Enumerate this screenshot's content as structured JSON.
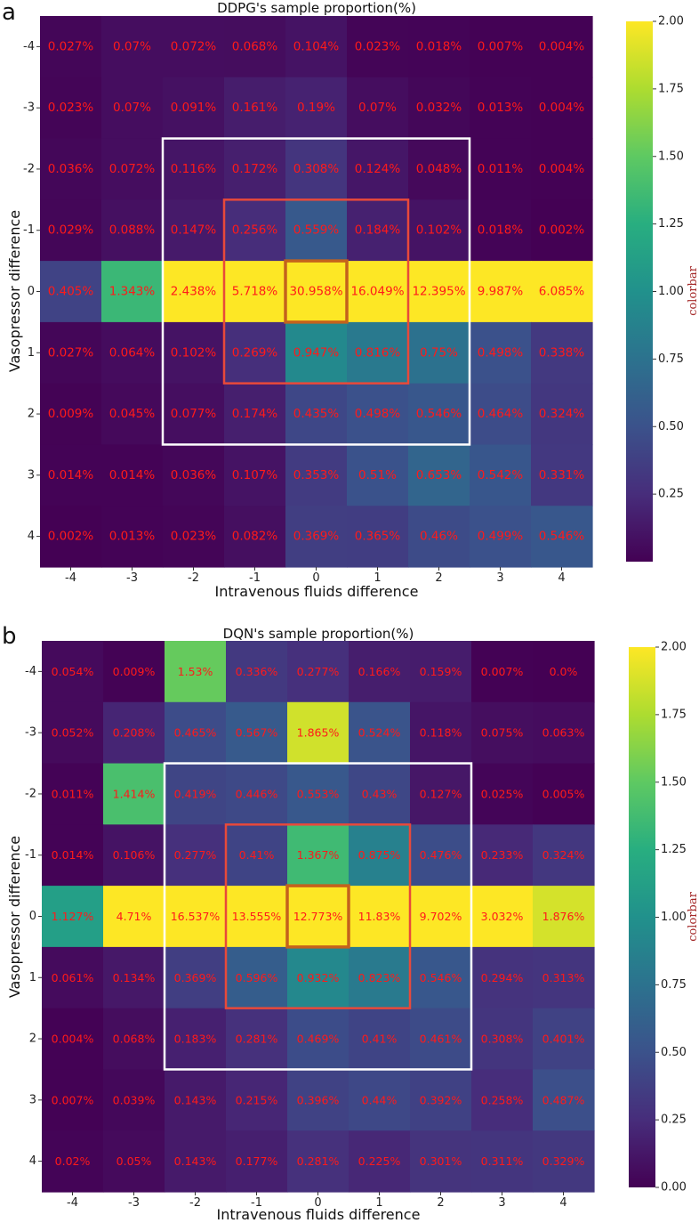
{
  "chart_data": [
    {
      "type": "heatmap",
      "panel_label": "a",
      "title": "DDPG's sample proportion(%)",
      "xlabel": "Intravenous fluids difference",
      "ylabel": "Vasopressor difference",
      "x_categories": [
        "-4",
        "-3",
        "-2",
        "-1",
        "0",
        "1",
        "2",
        "3",
        "4"
      ],
      "y_categories": [
        "-4",
        "-3",
        "-2",
        "-1",
        "0",
        "1",
        "2",
        "3",
        "4"
      ],
      "values": [
        [
          0.027,
          0.07,
          0.072,
          0.068,
          0.104,
          0.023,
          0.018,
          0.007,
          0.004
        ],
        [
          0.023,
          0.07,
          0.091,
          0.161,
          0.19,
          0.07,
          0.032,
          0.013,
          0.004
        ],
        [
          0.036,
          0.072,
          0.116,
          0.172,
          0.308,
          0.124,
          0.048,
          0.011,
          0.004
        ],
        [
          0.029,
          0.088,
          0.147,
          0.256,
          0.559,
          0.184,
          0.102,
          0.018,
          0.002
        ],
        [
          0.405,
          1.343,
          2.438,
          5.718,
          30.958,
          16.049,
          12.395,
          9.987,
          6.085
        ],
        [
          0.027,
          0.064,
          0.102,
          0.269,
          0.947,
          0.816,
          0.75,
          0.498,
          0.338
        ],
        [
          0.009,
          0.045,
          0.077,
          0.174,
          0.435,
          0.498,
          0.546,
          0.464,
          0.324
        ],
        [
          0.014,
          0.014,
          0.036,
          0.107,
          0.353,
          0.51,
          0.653,
          0.542,
          0.331
        ],
        [
          0.002,
          0.013,
          0.023,
          0.082,
          0.369,
          0.365,
          0.46,
          0.499,
          0.546
        ]
      ],
      "labels": [
        [
          "0.027%",
          "0.07%",
          "0.072%",
          "0.068%",
          "0.104%",
          "0.023%",
          "0.018%",
          "0.007%",
          "0.004%"
        ],
        [
          "0.023%",
          "0.07%",
          "0.091%",
          "0.161%",
          "0.19%",
          "0.07%",
          "0.032%",
          "0.013%",
          "0.004%"
        ],
        [
          "0.036%",
          "0.072%",
          "0.116%",
          "0.172%",
          "0.308%",
          "0.124%",
          "0.048%",
          "0.011%",
          "0.004%"
        ],
        [
          "0.029%",
          "0.088%",
          "0.147%",
          "0.256%",
          "0.559%",
          "0.184%",
          "0.102%",
          "0.018%",
          "0.002%"
        ],
        [
          "0.405%",
          "1.343%",
          "2.438%",
          "5.718%",
          "30.958%",
          "16.049%",
          "12.395%",
          "9.987%",
          "6.085%"
        ],
        [
          "0.027%",
          "0.064%",
          "0.102%",
          "0.269%",
          "0.947%",
          "0.816%",
          "0.75%",
          "0.498%",
          "0.338%"
        ],
        [
          "0.009%",
          "0.045%",
          "0.077%",
          "0.174%",
          "0.435%",
          "0.498%",
          "0.546%",
          "0.464%",
          "0.324%"
        ],
        [
          "0.014%",
          "0.014%",
          "0.036%",
          "0.107%",
          "0.353%",
          "0.51%",
          "0.653%",
          "0.542%",
          "0.331%"
        ],
        [
          "0.002%",
          "0.013%",
          "0.023%",
          "0.082%",
          "0.369%",
          "0.365%",
          "0.46%",
          "0.499%",
          "0.546%"
        ]
      ],
      "highlight_boxes": [
        {
          "x_range": [
            "-2",
            "2"
          ],
          "y_range": [
            "-2",
            "2"
          ],
          "color": "#ffffff"
        },
        {
          "x_range": [
            "-1",
            "1"
          ],
          "y_range": [
            "-1",
            "1"
          ],
          "color": "#e8493a"
        },
        {
          "x_range": [
            "0",
            "0"
          ],
          "y_range": [
            "0",
            "0"
          ],
          "color": "#c4621c"
        }
      ],
      "colorbar": {
        "label": "colorbar",
        "vmin": 0,
        "vmax": 2,
        "ticks": [
          0.25,
          0.5,
          0.75,
          1.0,
          1.25,
          1.5,
          1.75,
          2.0
        ],
        "tick_labels": [
          "0.25",
          "0.50",
          "0.75",
          "1.00",
          "1.25",
          "1.50",
          "1.75",
          "2.00"
        ]
      }
    },
    {
      "type": "heatmap",
      "panel_label": "b",
      "title": "DQN's sample proportion(%)",
      "xlabel": "Intravenous fluids difference",
      "ylabel": "Vasopressor difference",
      "x_categories": [
        "-4",
        "-3",
        "-2",
        "-1",
        "0",
        "1",
        "2",
        "3",
        "4"
      ],
      "y_categories": [
        "-4",
        "-3",
        "-2",
        "-1",
        "0",
        "1",
        "2",
        "3",
        "4"
      ],
      "values": [
        [
          0.054,
          0.009,
          1.53,
          0.336,
          0.277,
          0.166,
          0.159,
          0.007,
          0.0
        ],
        [
          0.052,
          0.208,
          0.465,
          0.567,
          1.865,
          0.524,
          0.118,
          0.075,
          0.063
        ],
        [
          0.011,
          1.414,
          0.419,
          0.446,
          0.553,
          0.43,
          0.127,
          0.025,
          0.005
        ],
        [
          0.014,
          0.106,
          0.277,
          0.41,
          1.367,
          0.875,
          0.476,
          0.233,
          0.324
        ],
        [
          1.127,
          4.71,
          16.537,
          13.555,
          12.773,
          11.83,
          9.702,
          3.032,
          1.876
        ],
        [
          0.061,
          0.134,
          0.369,
          0.596,
          0.932,
          0.823,
          0.546,
          0.294,
          0.313
        ],
        [
          0.004,
          0.068,
          0.183,
          0.281,
          0.469,
          0.41,
          0.461,
          0.308,
          0.401
        ],
        [
          0.007,
          0.039,
          0.143,
          0.215,
          0.396,
          0.44,
          0.392,
          0.258,
          0.487
        ],
        [
          0.02,
          0.05,
          0.143,
          0.177,
          0.281,
          0.225,
          0.301,
          0.311,
          0.329
        ]
      ],
      "labels": [
        [
          "0.054%",
          "0.009%",
          "1.53%",
          "0.336%",
          "0.277%",
          "0.166%",
          "0.159%",
          "0.007%",
          "0.0%"
        ],
        [
          "0.052%",
          "0.208%",
          "0.465%",
          "0.567%",
          "1.865%",
          "0.524%",
          "0.118%",
          "0.075%",
          "0.063%"
        ],
        [
          "0.011%",
          "1.414%",
          "0.419%",
          "0.446%",
          "0.553%",
          "0.43%",
          "0.127%",
          "0.025%",
          "0.005%"
        ],
        [
          "0.014%",
          "0.106%",
          "0.277%",
          "0.41%",
          "1.367%",
          "0.875%",
          "0.476%",
          "0.233%",
          "0.324%"
        ],
        [
          "1.127%",
          "4.71%",
          "16.537%",
          "13.555%",
          "12.773%",
          "11.83%",
          "9.702%",
          "3.032%",
          "1.876%"
        ],
        [
          "0.061%",
          "0.134%",
          "0.369%",
          "0.596%",
          "0.932%",
          "0.823%",
          "0.546%",
          "0.294%",
          "0.313%"
        ],
        [
          "0.004%",
          "0.068%",
          "0.183%",
          "0.281%",
          "0.469%",
          "0.41%",
          "0.461%",
          "0.308%",
          "0.401%"
        ],
        [
          "0.007%",
          "0.039%",
          "0.143%",
          "0.215%",
          "0.396%",
          "0.44%",
          "0.392%",
          "0.258%",
          "0.487%"
        ],
        [
          "0.02%",
          "0.05%",
          "0.143%",
          "0.177%",
          "0.281%",
          "0.225%",
          "0.301%",
          "0.311%",
          "0.329%"
        ]
      ],
      "highlight_boxes": [
        {
          "x_range": [
            "-2",
            "2"
          ],
          "y_range": [
            "-2",
            "2"
          ],
          "color": "#ffffff"
        },
        {
          "x_range": [
            "-1",
            "1"
          ],
          "y_range": [
            "-1",
            "1"
          ],
          "color": "#e8493a"
        },
        {
          "x_range": [
            "0",
            "0"
          ],
          "y_range": [
            "0",
            "0"
          ],
          "color": "#c4621c"
        }
      ],
      "colorbar": {
        "label": "colorbar",
        "vmin": 0,
        "vmax": 2,
        "ticks": [
          0.0,
          0.25,
          0.5,
          0.75,
          1.0,
          1.25,
          1.5,
          1.75,
          2.0
        ],
        "tick_labels": [
          "0.00",
          "0.25",
          "0.50",
          "0.75",
          "1.00",
          "1.25",
          "1.50",
          "1.75",
          "2.00"
        ]
      }
    }
  ]
}
